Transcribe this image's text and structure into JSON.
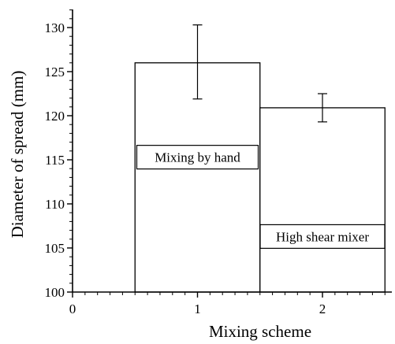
{
  "chart_data": {
    "type": "bar",
    "xlabel": "Mixing scheme",
    "ylabel": "Diameter of spread (mm)",
    "ylim": [
      100,
      132
    ],
    "xlim": [
      0,
      2.5
    ],
    "x_ticks": [
      "0",
      "1",
      "2"
    ],
    "y_ticks": [
      "100",
      "105",
      "110",
      "115",
      "120",
      "125",
      "130"
    ],
    "categories": [
      "1",
      "2"
    ],
    "values": [
      126,
      120.9
    ],
    "error_low": [
      121.9,
      119.3
    ],
    "error_high": [
      130.3,
      122.5
    ],
    "annotations": [
      "Mixing by hand",
      "High shear mixer"
    ],
    "grid": false,
    "legend": "none"
  }
}
